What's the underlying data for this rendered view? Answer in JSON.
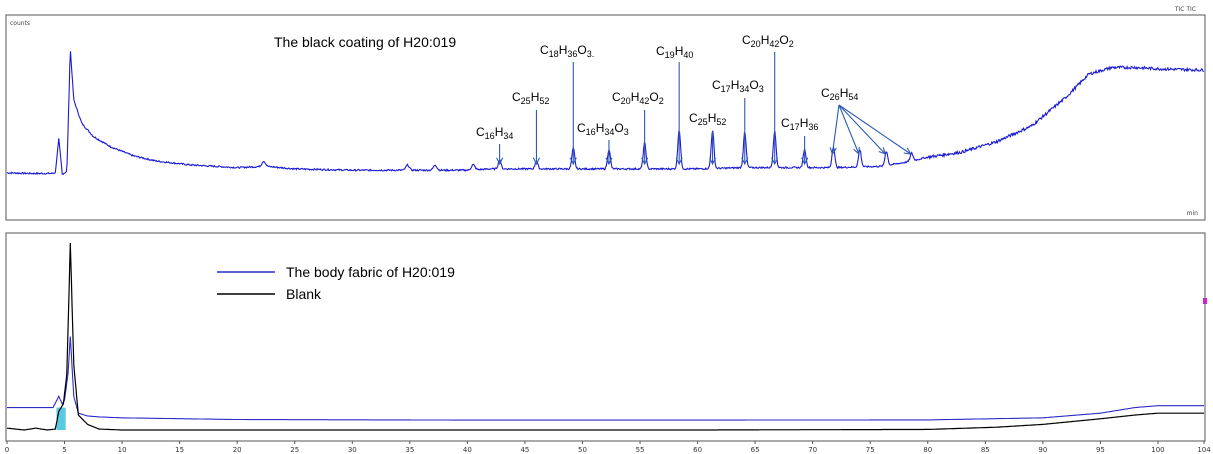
{
  "header_right": "TIC TIC",
  "chart_data": [
    {
      "type": "line",
      "title": "The black coating of H20:019",
      "ylabel": "counts",
      "xlabel": "min",
      "xlim": [
        0,
        104
      ],
      "grid": false,
      "series": [
        {
          "color": "#1a1ad6",
          "x": [
            0,
            2,
            3.8,
            4.2,
            4.5,
            4.8,
            5.2,
            5.5,
            5.8,
            6.5,
            7.5,
            9,
            11,
            13,
            16,
            20,
            22.5,
            25,
            30,
            35,
            40,
            42,
            44,
            47,
            52,
            56,
            60,
            64,
            68,
            72,
            76,
            78,
            80,
            83,
            86,
            89,
            92,
            94,
            96,
            98,
            100,
            104
          ],
          "y": [
            4,
            3.5,
            3.5,
            4,
            30,
            3,
            5,
            100,
            60,
            42,
            32,
            24,
            17,
            13,
            10,
            8,
            9,
            7,
            6,
            6,
            6,
            7,
            7,
            7,
            7,
            7,
            7,
            8,
            8,
            8,
            9,
            12,
            16,
            20,
            28,
            40,
            62,
            80,
            85,
            85,
            84,
            83
          ]
        }
      ],
      "peaks": [
        {
          "x": 42.8,
          "h": 7
        },
        {
          "x": 46,
          "h": 6
        },
        {
          "x": 49.2,
          "h": 16
        },
        {
          "x": 52.3,
          "h": 15
        },
        {
          "x": 55.4,
          "h": 20
        },
        {
          "x": 58.4,
          "h": 30
        },
        {
          "x": 61.3,
          "h": 29
        },
        {
          "x": 64.1,
          "h": 27
        },
        {
          "x": 66.7,
          "h": 28
        },
        {
          "x": 69.3,
          "h": 14
        },
        {
          "x": 71.8,
          "h": 16
        },
        {
          "x": 74.1,
          "h": 13
        },
        {
          "x": 76.4,
          "h": 11
        },
        {
          "x": 78.6,
          "h": 6
        }
      ],
      "annotations": [
        {
          "main": [
            "C",
            "16",
            "H",
            "34"
          ],
          "x": 42.8
        },
        {
          "main": [
            "C",
            "25",
            "H",
            "52"
          ],
          "x": 46
        },
        {
          "main": [
            "C",
            "18",
            "H",
            "36",
            "O",
            "3."
          ],
          "x": 49.2
        },
        {
          "main": [
            "C",
            "16",
            "H",
            "34",
            "O",
            "3"
          ],
          "x": 52.3
        },
        {
          "main": [
            "C",
            "20",
            "H",
            "42",
            "O",
            "2"
          ],
          "x": 55.4
        },
        {
          "main": [
            "C",
            "19",
            "H",
            "40"
          ],
          "x": 58.4
        },
        {
          "main": [
            "C",
            "25",
            "H",
            "52"
          ],
          "x": 61.3
        },
        {
          "main": [
            "C",
            "17",
            "H",
            "34",
            "O",
            "3"
          ],
          "x": 64.1
        },
        {
          "main": [
            "C",
            "20",
            "H",
            "42",
            "O",
            "2"
          ],
          "x": 66.7
        },
        {
          "main": [
            "C",
            "17",
            "H",
            "36"
          ],
          "x": 69.3
        },
        {
          "main": [
            "C",
            "26",
            "H",
            "54"
          ],
          "x": [
            71.8,
            74.1,
            76.4,
            78.6
          ]
        }
      ]
    },
    {
      "type": "line",
      "xlim": [
        0,
        104
      ],
      "xticks": [
        0,
        5,
        10,
        15,
        20,
        25,
        30,
        35,
        40,
        45,
        50,
        55,
        60,
        65,
        70,
        75,
        80,
        85,
        90,
        95,
        100,
        104
      ],
      "legend_position": "top-left",
      "series": [
        {
          "name": "The body fabric of H20:019",
          "color": "#2b2bc8",
          "x": [
            0,
            4,
            4.5,
            4.8,
            5.0,
            5.3,
            5.5,
            5.8,
            6.2,
            7,
            8,
            10,
            20,
            40,
            60,
            80,
            90,
            95,
            98,
            100,
            104
          ],
          "y": [
            12,
            12,
            18,
            14,
            16,
            30,
            50,
            18,
            9,
            7.5,
            7,
            6.5,
            5.6,
            5.3,
            5.3,
            5.4,
            6.5,
            9,
            12,
            13,
            13
          ]
        },
        {
          "name": "Blank",
          "color": "#000000",
          "x": [
            0,
            1.5,
            2.5,
            3.5,
            4.2,
            4.5,
            4.9,
            5.2,
            5.5,
            5.8,
            6.2,
            7,
            8,
            10,
            20,
            40,
            60,
            80,
            86,
            90,
            95,
            98,
            100,
            104
          ],
          "y": [
            1,
            0,
            1,
            0,
            0.5,
            10,
            14,
            30,
            100,
            35,
            8,
            3,
            0.5,
            0,
            0,
            0,
            0,
            0.3,
            1.5,
            3,
            6,
            8,
            9,
            9
          ]
        }
      ]
    }
  ]
}
